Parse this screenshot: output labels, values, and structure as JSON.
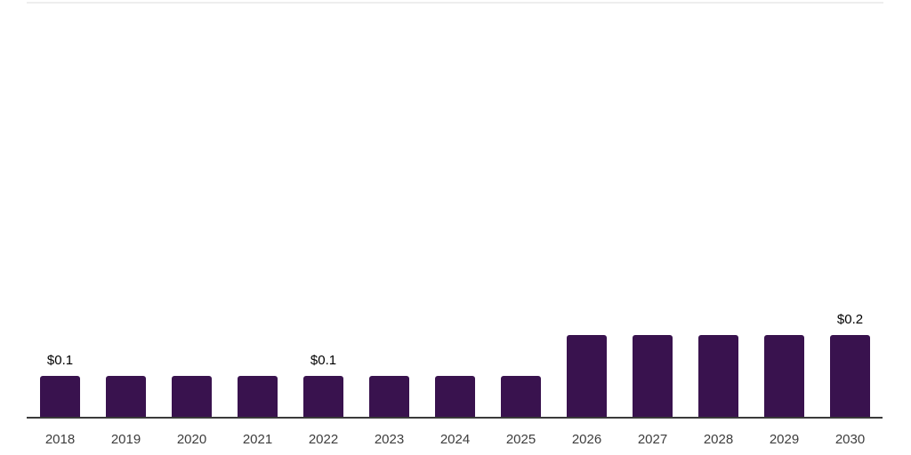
{
  "chart_data": {
    "type": "bar",
    "title": "",
    "xlabel": "",
    "ylabel": "",
    "x": [
      "2018",
      "2019",
      "2020",
      "2021",
      "2022",
      "2023",
      "2024",
      "2025",
      "2026",
      "2027",
      "2028",
      "2029",
      "2030"
    ],
    "values": [
      0.1,
      0.1,
      0.1,
      0.1,
      0.1,
      0.1,
      0.1,
      0.1,
      0.2,
      0.2,
      0.2,
      0.2,
      0.2
    ],
    "data_labels": [
      "$0.1",
      null,
      null,
      null,
      "$0.1",
      null,
      null,
      null,
      null,
      null,
      null,
      null,
      "$0.2"
    ],
    "ylim": [
      0,
      1
    ],
    "grid": false,
    "legend": false,
    "colors": {
      "bar": "#39124e",
      "axis_line": "#3a3a3a",
      "plot_top_border": "#eeeeee",
      "data_label_text": "#000000",
      "tick_label_text": "#3d3d3d",
      "background": "#ffffff"
    }
  }
}
